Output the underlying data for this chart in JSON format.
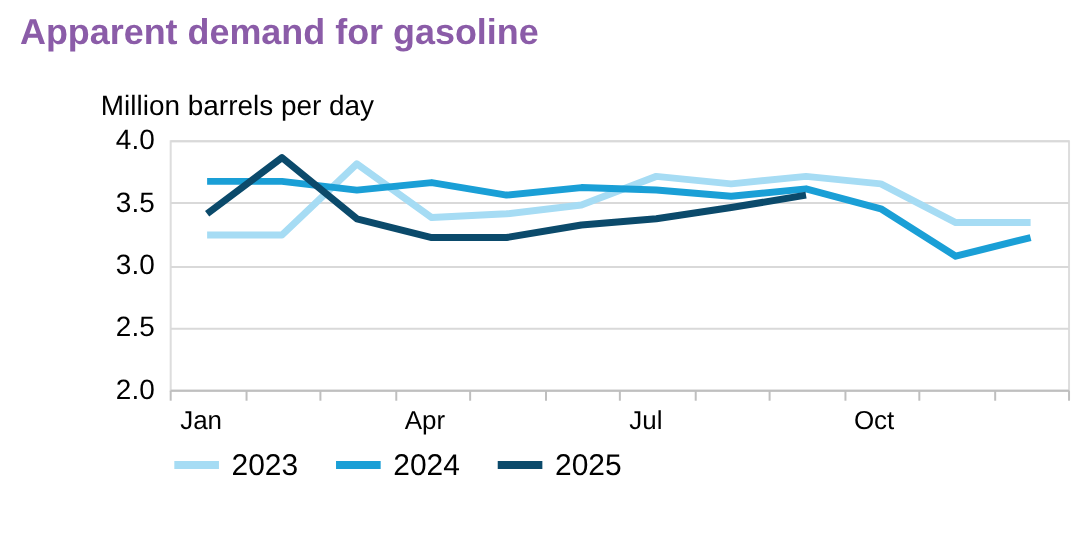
{
  "chart_data": {
    "type": "line",
    "title": "Apparent demand for gasoline",
    "ylabel": "Million barrels per day",
    "categories": [
      "Jan",
      null,
      null,
      "Apr",
      null,
      null,
      "Jul",
      null,
      null,
      "Oct",
      null,
      null
    ],
    "series": [
      {
        "name": "2023",
        "color": "#a6dcf4",
        "values": [
          3.24,
          3.24,
          3.81,
          3.38,
          3.41,
          3.48,
          3.71,
          3.65,
          3.71,
          3.65,
          3.34,
          3.34
        ]
      },
      {
        "name": "2024",
        "color": "#1a9fd6",
        "values": [
          3.67,
          3.67,
          3.6,
          3.66,
          3.56,
          3.62,
          3.6,
          3.55,
          3.61,
          3.45,
          3.07,
          3.22
        ]
      },
      {
        "name": "2025",
        "color": "#0b4a6b",
        "values": [
          3.41,
          3.86,
          3.37,
          3.22,
          3.22,
          3.32,
          3.37,
          3.46,
          3.56,
          null,
          null,
          null
        ]
      }
    ],
    "ylim": [
      2.0,
      4.0
    ],
    "yticks": [
      {
        "value": 2.0,
        "label": "2.0"
      },
      {
        "value": 2.5,
        "label": "2.5"
      },
      {
        "value": 3.0,
        "label": "3.0"
      },
      {
        "value": 3.5,
        "label": "3.5"
      },
      {
        "value": 4.0,
        "label": "4.0"
      }
    ],
    "grid": "y",
    "legend": "bottom",
    "marker": "none",
    "line_style": "solid"
  }
}
